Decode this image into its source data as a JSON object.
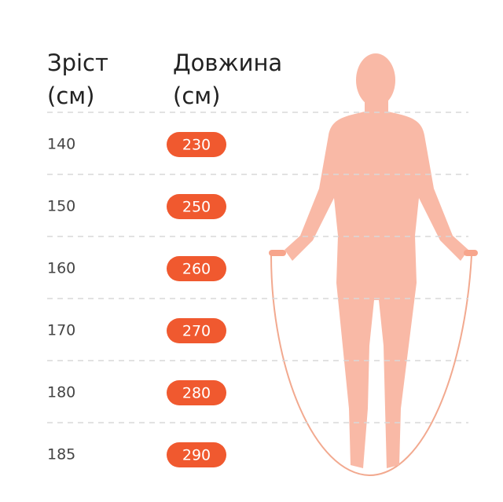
{
  "header": {
    "height": [
      "Зріст",
      "(см)"
    ],
    "length": [
      "Довжина",
      "(см)"
    ]
  },
  "table": {
    "rows": [
      [
        "140",
        "230"
      ],
      [
        "150",
        "250"
      ],
      [
        "160",
        "260"
      ],
      [
        "170",
        "270"
      ],
      [
        "180",
        "280"
      ],
      [
        "185",
        "290"
      ]
    ]
  }
}
